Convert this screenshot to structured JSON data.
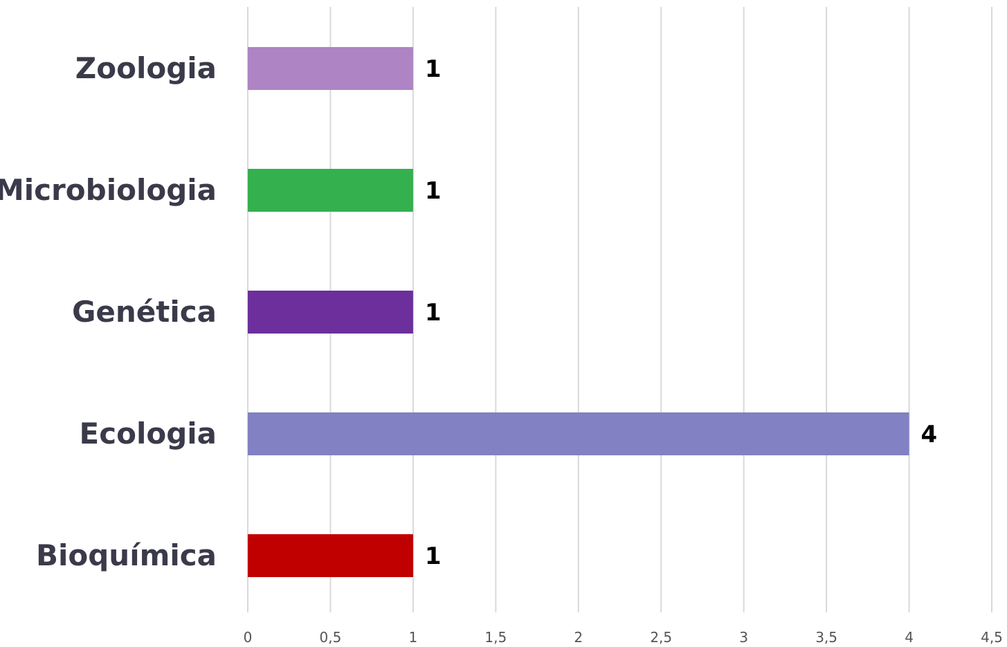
{
  "chart_data": {
    "type": "bar",
    "orientation": "horizontal",
    "title": "",
    "xlabel": "",
    "ylabel": "",
    "categories": [
      "Zoologia",
      "Microbiologia",
      "Genética",
      "Ecologia",
      "Bioquímica"
    ],
    "values": [
      1,
      1,
      1,
      4,
      1
    ],
    "data_labels": [
      "1",
      "1",
      "1",
      "4",
      "1"
    ],
    "colors": [
      "#ae84c4",
      "#34b04f",
      "#6d2f9c",
      "#8181c3",
      "#c00000"
    ],
    "xlim": [
      0,
      4.5
    ],
    "x_ticks": [
      0,
      0.5,
      1,
      1.5,
      2,
      2.5,
      3,
      3.5,
      4,
      4.5
    ],
    "x_tick_labels": [
      "0",
      "0,5",
      "1",
      "1,5",
      "2",
      "2,5",
      "3",
      "3,5",
      "4",
      "4,5"
    ],
    "grid": true,
    "legend": "none"
  }
}
